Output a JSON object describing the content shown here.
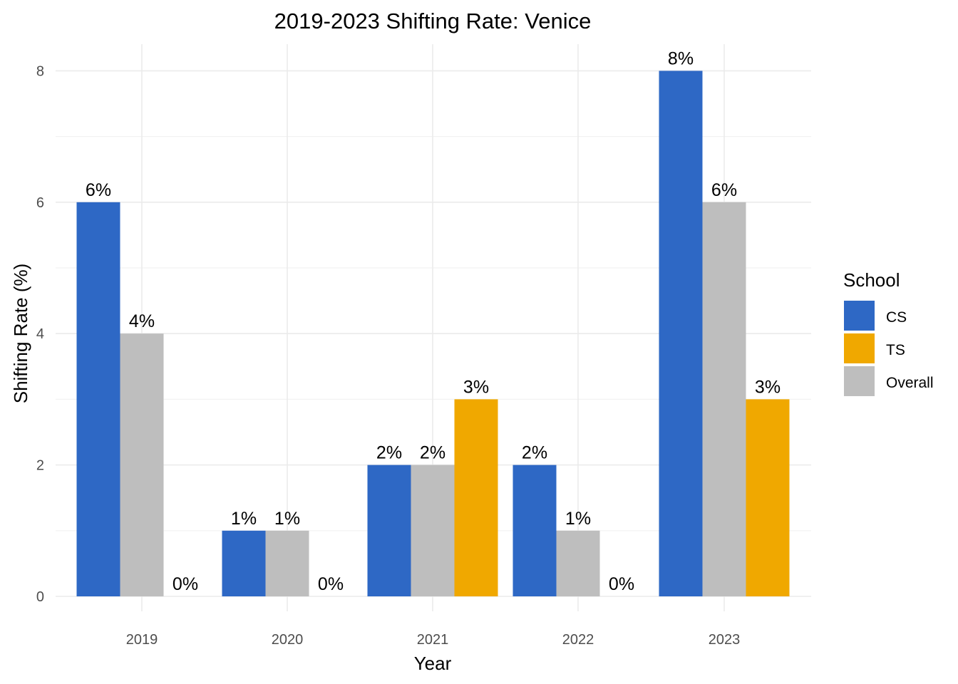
{
  "chart_data": {
    "type": "bar",
    "title": "2019-2023 Shifting Rate: Venice",
    "xlabel": "Year",
    "ylabel": "Shifting Rate (%)",
    "categories": [
      "2019",
      "2020",
      "2021",
      "2022",
      "2023"
    ],
    "ylim": [
      0,
      8
    ],
    "yticks": [
      "0",
      "2",
      "4",
      "6",
      "8"
    ],
    "grid": true,
    "legend": {
      "title": "School",
      "position": "right"
    },
    "series": [
      {
        "name": "CS",
        "color": "#2e68c5",
        "values": [
          6,
          1,
          2,
          2,
          8
        ],
        "labels": [
          "6%",
          "1%",
          "2%",
          "2%",
          "8%"
        ]
      },
      {
        "name": "TS",
        "color": "#f0a800",
        "values": [
          0,
          0,
          3,
          0,
          3
        ],
        "labels": [
          "0%",
          "0%",
          "3%",
          "0%",
          "3%"
        ]
      },
      {
        "name": "Overall",
        "color": "#bebebe",
        "values": [
          4,
          1,
          2,
          1,
          6
        ],
        "labels": [
          "4%",
          "1%",
          "2%",
          "1%",
          "6%"
        ]
      }
    ],
    "bar_order": [
      [
        "CS",
        "Overall",
        "TS"
      ],
      [
        "CS",
        "Overall",
        "TS"
      ],
      [
        "CS",
        "Overall",
        "TS"
      ],
      [
        "CS",
        "Overall",
        "TS"
      ],
      [
        "CS",
        "Overall",
        "TS"
      ]
    ]
  }
}
